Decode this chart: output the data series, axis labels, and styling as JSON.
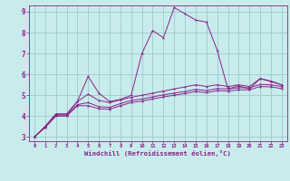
{
  "xlabel": "Windchill (Refroidissement éolien,°C)",
  "bg_color": "#c8ecec",
  "grid_color": "#a0c8d0",
  "line_color": "#882288",
  "spine_color": "#884488",
  "xlim": [
    -0.5,
    23.5
  ],
  "ylim": [
    2.8,
    9.3
  ],
  "xticks": [
    0,
    1,
    2,
    3,
    4,
    5,
    6,
    7,
    8,
    9,
    10,
    11,
    12,
    13,
    14,
    15,
    16,
    17,
    18,
    19,
    20,
    21,
    22,
    23
  ],
  "yticks": [
    3,
    4,
    5,
    6,
    7,
    8,
    9
  ],
  "x": [
    0,
    1,
    2,
    3,
    4,
    5,
    6,
    7,
    8,
    9,
    10,
    11,
    12,
    13,
    14,
    15,
    16,
    17,
    18,
    19,
    20,
    21,
    22,
    23
  ],
  "line_spike": [
    3.0,
    3.5,
    4.1,
    4.1,
    4.7,
    5.9,
    5.1,
    4.7,
    4.8,
    5.0,
    7.0,
    8.1,
    7.75,
    9.2,
    8.9,
    8.6,
    8.5,
    7.15,
    5.3,
    5.45,
    5.3,
    5.8,
    5.65,
    5.5
  ],
  "line_flat1": [
    3.0,
    3.5,
    4.1,
    4.1,
    4.7,
    5.05,
    4.75,
    4.65,
    4.78,
    4.9,
    5.0,
    5.1,
    5.2,
    5.3,
    5.4,
    5.5,
    5.42,
    5.5,
    5.42,
    5.5,
    5.42,
    5.8,
    5.68,
    5.5
  ],
  "line_flat2": [
    3.0,
    3.5,
    4.05,
    4.05,
    4.55,
    4.65,
    4.45,
    4.42,
    4.6,
    4.75,
    4.82,
    4.92,
    5.02,
    5.1,
    5.18,
    5.28,
    5.22,
    5.32,
    5.3,
    5.36,
    5.36,
    5.52,
    5.5,
    5.42
  ],
  "line_flat3": [
    3.0,
    3.45,
    4.0,
    4.0,
    4.5,
    4.5,
    4.35,
    4.33,
    4.5,
    4.65,
    4.72,
    4.82,
    4.92,
    5.0,
    5.08,
    5.18,
    5.12,
    5.22,
    5.2,
    5.26,
    5.26,
    5.42,
    5.4,
    5.32
  ]
}
